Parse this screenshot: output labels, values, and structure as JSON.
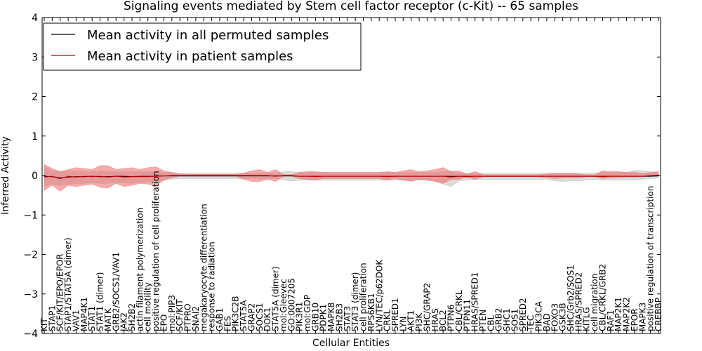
{
  "chart_data": {
    "type": "line",
    "title": "Signaling events mediated by Stem cell factor receptor (c-Kit) -- 65 samples",
    "xlabel": "Cellular Entities",
    "ylabel": "Inferred Activity",
    "ylim": [
      -4,
      4
    ],
    "yticks": [
      -4,
      -3,
      -2,
      -1,
      0,
      1,
      2,
      3,
      4
    ],
    "ytick_labels": [
      "−4",
      "−3",
      "−2",
      "−1",
      "0",
      "1",
      "2",
      "3",
      "4"
    ],
    "legend_position": "top-left",
    "colors": {
      "permuted_line": "#000000",
      "permuted_band": "#bbbbbb",
      "patient_line": "#cc0000",
      "patient_band": "#ee6666"
    },
    "categories": [
      "KIT",
      "STAP1",
      "SCF/KIT/EPO/EPOR",
      "STAP1/STAT5A (dimer)",
      "VAV1",
      "MAP4K1",
      "STAT1",
      "STAT1 (dimer)",
      "MATK",
      "GRB2/SOCS1/VAV1",
      "JAK2",
      "SH2B2",
      "actin filament polymerization",
      "cell motility",
      "positive regulation of cell proliferation",
      "EPO",
      "mol:PIP3",
      "SCF/KIT",
      "PTPRO",
      "SNAI2",
      "megakaryocyte differentiation",
      "response to radiation",
      "GAB1",
      "FES",
      "PIK3C2B",
      "STAT5A",
      "GRAP2",
      "SOCS1",
      "DOK1",
      "STAT5A (dimer)",
      "mol:Gleevec",
      "GO:0007205",
      "PIK3R1",
      "mol:GDP",
      "GRB10",
      "PDPK1",
      "MAPK8",
      "SH2B3",
      "STAT3",
      "STAT3 (dimer)",
      "cell proliferation",
      "RPS6KB1",
      "LYN/TEC/p62DOK",
      "CRKL",
      "SPRED1",
      "LYN",
      "AKT1",
      "PI3K",
      "SHC/GRAP2",
      "HRAS",
      "BCL2",
      "PTPN6",
      "CBL/CRKL",
      "PTPN11",
      "HRAS/SPRED1",
      "PTEN",
      "CBL",
      "GRB2",
      "SHC1",
      "SOS1",
      "SPRED2",
      "TEC",
      "PIK3CA",
      "BAD",
      "FOXO3",
      "GSK3B",
      "SHC/Grb2/SOS1",
      "HRAS/SPRED2",
      "KITLG",
      "cell migration",
      "CBL/CRKL/GRB2",
      "RAF1",
      "MAP2K1",
      "MAP2K2",
      "EPOR",
      "MAPK3",
      "positive regulation of transcription",
      "CREBBP"
    ],
    "series": [
      {
        "name": "Mean activity in all permuted samples",
        "values": [
          -0.02,
          -0.03,
          -0.06,
          -0.04,
          -0.03,
          -0.03,
          -0.02,
          -0.03,
          -0.03,
          -0.02,
          -0.02,
          -0.03,
          -0.02,
          -0.02,
          -0.02,
          -0.01,
          -0.01,
          -0.01,
          -0.01,
          -0.01,
          -0.01,
          -0.01,
          -0.01,
          -0.01,
          -0.01,
          -0.01,
          -0.01,
          -0.01,
          -0.01,
          -0.01,
          -0.01,
          -0.01,
          -0.02,
          -0.02,
          -0.02,
          -0.02,
          -0.02,
          -0.02,
          -0.02,
          -0.02,
          -0.02,
          -0.02,
          -0.02,
          -0.02,
          -0.02,
          -0.02,
          -0.02,
          -0.02,
          -0.02,
          -0.02,
          -0.02,
          -0.02,
          -0.02,
          -0.02,
          -0.02,
          -0.02,
          -0.02,
          -0.02,
          -0.02,
          -0.02,
          -0.02,
          -0.02,
          -0.02,
          -0.02,
          -0.02,
          -0.02,
          -0.02,
          -0.02,
          -0.02,
          -0.02,
          -0.02,
          -0.02,
          -0.02,
          -0.02,
          -0.02,
          -0.02,
          -0.02,
          -0.01
        ],
        "band_upper": [
          0.22,
          0.12,
          0.1,
          0.12,
          0.12,
          0.1,
          0.1,
          0.12,
          0.1,
          0.1,
          0.1,
          0.1,
          0.1,
          0.1,
          0.1,
          0.08,
          0.08,
          0.06,
          0.06,
          0.06,
          0.06,
          0.06,
          0.06,
          0.06,
          0.06,
          0.06,
          0.06,
          0.06,
          0.06,
          0.06,
          0.1,
          0.1,
          0.08,
          0.08,
          0.08,
          0.08,
          0.08,
          0.08,
          0.08,
          0.08,
          0.08,
          0.08,
          0.08,
          0.08,
          0.08,
          0.08,
          0.08,
          0.08,
          0.08,
          0.08,
          0.1,
          0.12,
          0.06,
          0.06,
          0.06,
          0.06,
          0.06,
          0.06,
          0.06,
          0.06,
          0.06,
          0.06,
          0.06,
          0.06,
          0.06,
          0.06,
          0.06,
          0.06,
          0.06,
          0.06,
          0.08,
          0.08,
          0.08,
          0.08,
          0.14,
          0.12,
          0.1,
          0.08
        ],
        "band_lower": [
          -0.28,
          -0.22,
          -0.25,
          -0.22,
          -0.2,
          -0.2,
          -0.18,
          -0.2,
          -0.2,
          -0.18,
          -0.18,
          -0.2,
          -0.18,
          -0.16,
          -0.15,
          -0.12,
          -0.1,
          -0.08,
          -0.08,
          -0.08,
          -0.08,
          -0.08,
          -0.08,
          -0.08,
          -0.08,
          -0.08,
          -0.08,
          -0.08,
          -0.08,
          -0.08,
          -0.12,
          -0.14,
          -0.12,
          -0.12,
          -0.12,
          -0.12,
          -0.12,
          -0.12,
          -0.12,
          -0.12,
          -0.12,
          -0.12,
          -0.12,
          -0.12,
          -0.12,
          -0.12,
          -0.12,
          -0.12,
          -0.12,
          -0.14,
          -0.22,
          -0.28,
          -0.14,
          -0.12,
          -0.1,
          -0.1,
          -0.1,
          -0.1,
          -0.1,
          -0.1,
          -0.1,
          -0.1,
          -0.1,
          -0.1,
          -0.14,
          -0.16,
          -0.14,
          -0.14,
          -0.12,
          -0.1,
          -0.12,
          -0.12,
          -0.12,
          -0.12,
          -0.12,
          -0.1,
          -0.08,
          -0.06
        ]
      },
      {
        "name": "Mean activity in patient samples",
        "values": [
          -0.04,
          -0.02,
          -0.08,
          -0.02,
          -0.04,
          -0.02,
          -0.03,
          -0.02,
          -0.04,
          -0.02,
          -0.04,
          -0.03,
          -0.03,
          -0.03,
          -0.02,
          -0.01,
          0.0,
          0.0,
          0.0,
          0.0,
          0.0,
          0.0,
          0.0,
          0.0,
          0.0,
          0.0,
          0.0,
          0.0,
          0.0,
          -0.02,
          0.0,
          0.0,
          -0.02,
          -0.02,
          -0.03,
          -0.02,
          -0.02,
          -0.02,
          -0.02,
          -0.02,
          -0.02,
          -0.02,
          -0.02,
          -0.03,
          -0.02,
          -0.02,
          -0.02,
          -0.02,
          -0.02,
          -0.02,
          -0.02,
          -0.04,
          -0.02,
          -0.03,
          -0.02,
          -0.02,
          -0.02,
          -0.02,
          -0.02,
          -0.02,
          -0.02,
          -0.02,
          -0.02,
          -0.02,
          -0.02,
          -0.02,
          -0.02,
          -0.02,
          -0.02,
          -0.02,
          -0.03,
          -0.02,
          -0.02,
          -0.02,
          -0.02,
          -0.02,
          0.0,
          0.01
        ],
        "band_upper": [
          0.28,
          0.18,
          0.1,
          0.15,
          0.2,
          0.18,
          0.15,
          0.25,
          0.25,
          0.15,
          0.18,
          0.2,
          0.15,
          0.2,
          0.22,
          0.12,
          0.08,
          0.04,
          0.03,
          0.03,
          0.03,
          0.03,
          0.03,
          0.03,
          0.03,
          0.06,
          0.12,
          0.15,
          0.08,
          0.15,
          0.02,
          0.02,
          0.08,
          0.1,
          0.1,
          0.08,
          0.08,
          0.08,
          0.08,
          0.08,
          0.08,
          0.08,
          0.08,
          0.1,
          0.08,
          0.12,
          0.15,
          0.1,
          0.12,
          0.15,
          0.2,
          0.1,
          0.12,
          0.03,
          0.1,
          0.02,
          0.02,
          0.02,
          0.02,
          0.02,
          0.02,
          0.02,
          0.02,
          0.04,
          0.06,
          0.05,
          0.06,
          0.04,
          0.02,
          0.02,
          0.12,
          0.1,
          0.1,
          0.08,
          0.08,
          0.05,
          0.08,
          0.1
        ],
        "band_lower": [
          -0.38,
          -0.25,
          -0.4,
          -0.25,
          -0.28,
          -0.25,
          -0.22,
          -0.3,
          -0.32,
          -0.2,
          -0.28,
          -0.25,
          -0.2,
          -0.22,
          -0.25,
          -0.12,
          -0.05,
          -0.02,
          -0.02,
          -0.02,
          -0.02,
          -0.02,
          -0.02,
          -0.02,
          -0.02,
          -0.1,
          -0.15,
          -0.15,
          -0.1,
          -0.15,
          -0.02,
          -0.02,
          -0.08,
          -0.1,
          -0.12,
          -0.08,
          -0.08,
          -0.08,
          -0.08,
          -0.08,
          -0.08,
          -0.08,
          -0.08,
          -0.12,
          -0.08,
          -0.12,
          -0.15,
          -0.1,
          -0.12,
          -0.15,
          -0.2,
          -0.1,
          -0.1,
          -0.04,
          -0.1,
          -0.03,
          -0.03,
          -0.03,
          -0.03,
          -0.03,
          -0.03,
          -0.03,
          -0.03,
          -0.05,
          -0.08,
          -0.06,
          -0.06,
          -0.06,
          -0.03,
          -0.03,
          -0.08,
          -0.05,
          -0.05,
          -0.04,
          -0.04,
          -0.03,
          -0.02,
          -0.02
        ]
      }
    ]
  }
}
